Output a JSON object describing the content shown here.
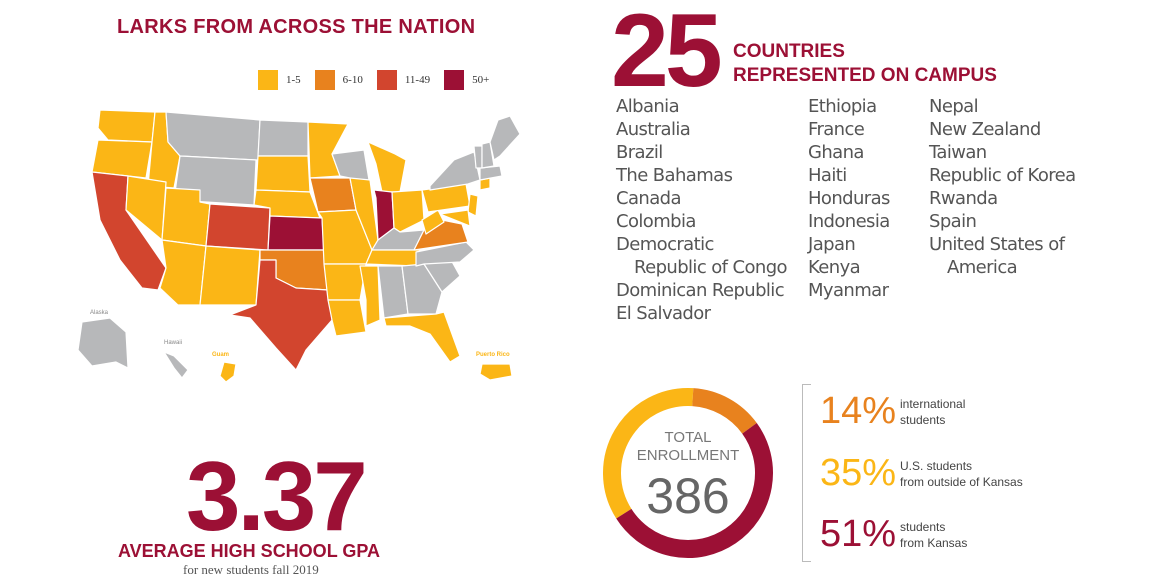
{
  "map_section": {
    "title": "LARKS FROM ACROSS THE NATION",
    "legend": [
      {
        "label": "1-5",
        "color": "#fbb616"
      },
      {
        "label": "6-10",
        "color": "#e8821e"
      },
      {
        "label": "11-49",
        "color": "#d2452e"
      },
      {
        "label": "50+",
        "color": "#9c1035"
      }
    ],
    "no_students_color": "#b7b8ba",
    "labels": {
      "alaska": "Alaska",
      "hawaii": "Hawaii",
      "guam": "Guam",
      "puerto_rico": "Puerto Rico"
    }
  },
  "countries": {
    "count": "25",
    "title_line1": "COUNTRIES",
    "title_line2": "REPRESENTED ON CAMPUS",
    "col1": [
      "Albania",
      "Australia",
      "Brazil",
      "The Bahamas",
      "Canada",
      "Colombia",
      "Democratic",
      "Republic of Congo",
      "Dominican Republic",
      "El Salvador"
    ],
    "col2": [
      "Ethiopia",
      "France",
      "Ghana",
      "Haiti",
      "Honduras",
      "Indonesia",
      "Japan",
      "Kenya",
      "Myanmar"
    ],
    "col3": [
      "Nepal",
      "New Zealand",
      "Taiwan",
      "Republic of Korea",
      "Rwanda",
      "Spain",
      "United States of",
      "America"
    ]
  },
  "gpa": {
    "value": "3.37",
    "label": "AVERAGE HIGH SCHOOL GPA",
    "sub": "for new students fall 2019"
  },
  "enrollment": {
    "label_line1": "TOTAL",
    "label_line2": "ENROLLMENT",
    "value": "386",
    "stats": [
      {
        "pct": "14%",
        "line1": "international",
        "line2": "students",
        "color": "#e8821e",
        "share": 14
      },
      {
        "pct": "35%",
        "line1": "U.S. students",
        "line2": "from outside of Kansas",
        "color": "#fbb616",
        "share": 35
      },
      {
        "pct": "51%",
        "line1": "students",
        "line2": "from Kansas",
        "color": "#9c1035",
        "share": 51
      }
    ]
  }
}
